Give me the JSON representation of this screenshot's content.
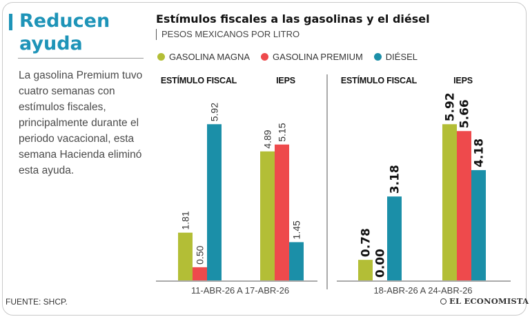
{
  "headline": [
    "Reducen",
    "ayuda"
  ],
  "description": "La gasolina Premium tuvo cuatro semanas con estímulos fiscales, principalmente durante el periodo vacacional, esta semana Hacienda eliminó esta ayuda.",
  "source": "FUENTE: SHCP.",
  "brand": "EL ECONOMISTA",
  "colors": {
    "magna": "#b3be36",
    "premium": "#ee4a4c",
    "diesel": "#1b8fa8",
    "accent": "#1e94b8"
  },
  "chart_data": {
    "type": "bar",
    "title": "Estímulos fiscales a las gasolinas y el diésel",
    "subtitle": "PESOS MEXICANOS POR LITRO",
    "legend": [
      "GASOLINA MAGNA",
      "GASOLINA PREMIUM",
      "DIÉSEL"
    ],
    "ylim": [
      0,
      6.5
    ],
    "groups": [
      {
        "period": "11-ABR-26 A 17-ABR-26",
        "sections": [
          {
            "label": "ESTÍMULO FISCAL",
            "values": [
              1.81,
              0.5,
              5.92
            ],
            "value_labels": [
              "1.81",
              "0.50",
              "5.92"
            ]
          },
          {
            "label": "IEPS",
            "values": [
              4.89,
              5.15,
              1.45
            ],
            "value_labels": [
              "4.89",
              "5.15",
              "1.45"
            ]
          }
        ]
      },
      {
        "period": "18-ABR-26 A 24-ABR-26",
        "sections": [
          {
            "label": "ESTÍMULO FISCAL",
            "values": [
              0.78,
              0.0,
              3.18
            ],
            "value_labels": [
              "0.78",
              "0.00",
              "3.18"
            ]
          },
          {
            "label": "IEPS",
            "values": [
              5.92,
              5.66,
              4.18
            ],
            "value_labels": [
              "5.92",
              "5.66",
              "4.18"
            ]
          }
        ]
      }
    ]
  }
}
